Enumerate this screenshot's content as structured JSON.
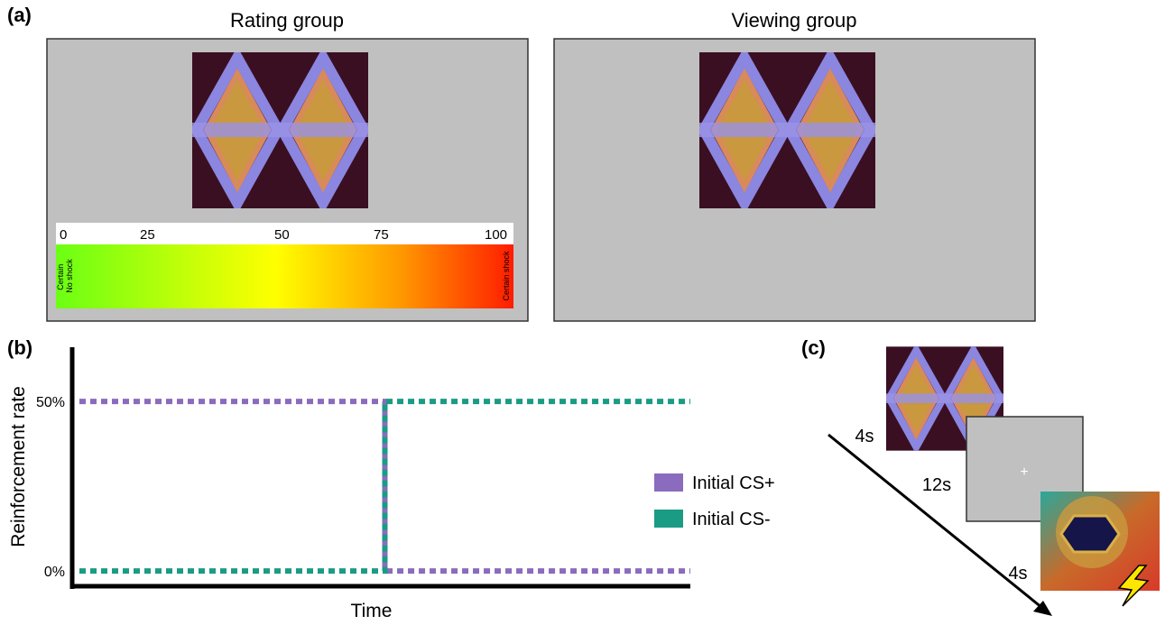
{
  "panel_a": {
    "label": "(a)",
    "rating_title": "Rating group",
    "viewing_title": "Viewing group",
    "scale": {
      "ticks": [
        "0",
        "25",
        "50",
        "75",
        "100"
      ],
      "left_label": [
        "Certain",
        "No shock"
      ],
      "right_label": "Certain shock"
    }
  },
  "chart_data": {
    "type": "line",
    "panel_label": "(b)",
    "ylabel": "Reinforcement rate",
    "xlabel": "Time",
    "x": [
      0,
      1,
      1,
      2
    ],
    "xlim": [
      0,
      2
    ],
    "ylim": [
      -4.5,
      66
    ],
    "yticks": [
      {
        "value": 50,
        "label": "50%"
      },
      {
        "value": 0,
        "label": "0%"
      }
    ],
    "legend": "right",
    "series": [
      {
        "name": "Initial CS+",
        "color": "#8a6bbd",
        "values": [
          50,
          50,
          0,
          0
        ]
      },
      {
        "name": "Initial CS-",
        "color": "#1a9b84",
        "values": [
          0,
          0,
          50,
          50
        ]
      }
    ]
  },
  "panel_c": {
    "label": "(c)",
    "durations": [
      "4s",
      "12s",
      "4s"
    ]
  }
}
